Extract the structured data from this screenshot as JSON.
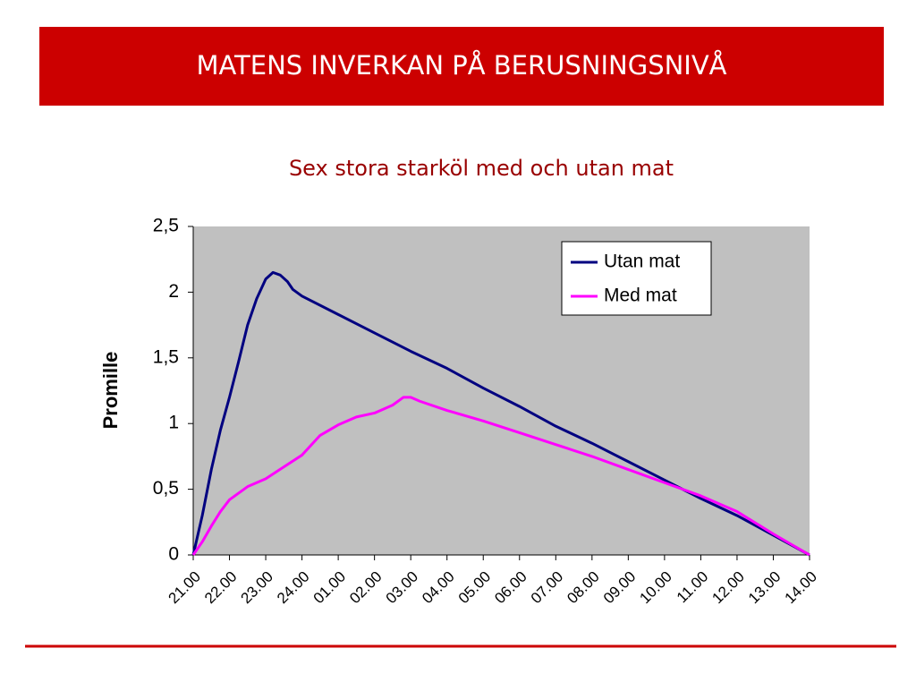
{
  "header": {
    "title": "MATENS INVERKAN PÅ BERUSNINGSNIVÅ"
  },
  "chart_data": {
    "type": "line",
    "title": "Sex stora starköl med och utan mat",
    "y_label": "Promille",
    "legend": "top-right",
    "plot_color": "#c0c0c0",
    "xlim": [
      0,
      17
    ],
    "ylim": [
      0,
      2.5
    ],
    "xticks": [
      {
        "value": 0,
        "label": "21.00"
      },
      {
        "value": 1,
        "label": "22.00"
      },
      {
        "value": 2,
        "label": "23.00"
      },
      {
        "value": 3,
        "label": "24.00"
      },
      {
        "value": 4,
        "label": "01.00"
      },
      {
        "value": 5,
        "label": "02.00"
      },
      {
        "value": 6,
        "label": "03.00"
      },
      {
        "value": 7,
        "label": "04.00"
      },
      {
        "value": 8,
        "label": "05.00"
      },
      {
        "value": 9,
        "label": "06.00"
      },
      {
        "value": 10,
        "label": "07.00"
      },
      {
        "value": 11,
        "label": "08.00"
      },
      {
        "value": 12,
        "label": "09.00"
      },
      {
        "value": 13,
        "label": "10.00"
      },
      {
        "value": 14,
        "label": "11.00"
      },
      {
        "value": 15,
        "label": "12.00"
      },
      {
        "value": 16,
        "label": "13.00"
      },
      {
        "value": 17,
        "label": "14.00"
      }
    ],
    "yticks": [
      0,
      {
        "value": 0.5,
        "label": "0,5"
      },
      1,
      {
        "value": 1.5,
        "label": "1,5"
      },
      2,
      {
        "value": 2.5,
        "label": "2,5"
      }
    ],
    "series": [
      {
        "name": "Utan mat",
        "color": "#000080",
        "x": [
          0,
          0.25,
          0.5,
          0.75,
          1,
          1.25,
          1.5,
          1.75,
          2,
          2.2,
          2.4,
          2.6,
          2.75,
          3,
          4,
          5,
          6,
          7,
          8,
          9,
          10,
          11,
          12,
          13,
          14,
          15,
          16,
          17
        ],
        "values": [
          0,
          0.3,
          0.65,
          0.95,
          1.2,
          1.47,
          1.75,
          1.95,
          2.1,
          2.15,
          2.13,
          2.08,
          2.02,
          1.97,
          1.83,
          1.69,
          1.55,
          1.42,
          1.27,
          1.13,
          0.98,
          0.85,
          0.71,
          0.57,
          0.43,
          0.3,
          0.15,
          0
        ]
      },
      {
        "name": "Med mat",
        "color": "#ff00ff",
        "x": [
          0,
          0.25,
          0.5,
          0.75,
          1,
          1.5,
          2,
          2.5,
          3,
          3.5,
          4,
          4.5,
          5,
          5.5,
          5.8,
          6,
          6.25,
          7,
          8,
          9,
          10,
          11,
          12,
          13,
          14,
          15,
          16,
          17
        ],
        "values": [
          0,
          0.1,
          0.22,
          0.33,
          0.42,
          0.52,
          0.58,
          0.67,
          0.76,
          0.91,
          0.99,
          1.05,
          1.08,
          1.14,
          1.2,
          1.2,
          1.17,
          1.1,
          1.02,
          0.93,
          0.84,
          0.75,
          0.65,
          0.55,
          0.45,
          0.33,
          0.16,
          0
        ]
      }
    ]
  }
}
